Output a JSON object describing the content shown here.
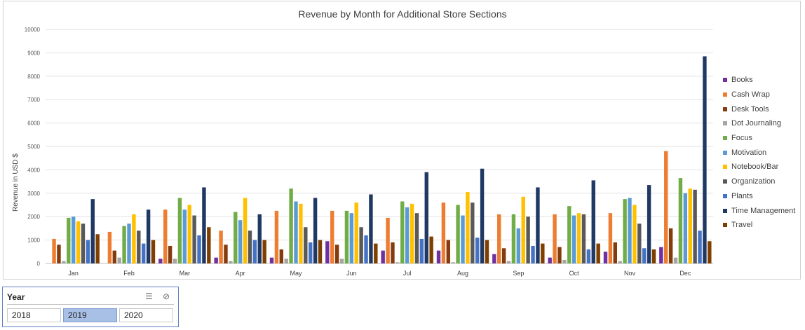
{
  "chart_data": {
    "type": "bar",
    "title": "Revenue by Month for Additional Store Sections",
    "ylabel": "Revenue in USD $",
    "xlabel": "",
    "ylim": [
      0,
      10000
    ],
    "ytick_values": [
      0,
      1000,
      2000,
      3000,
      4000,
      5000,
      6000,
      7000,
      8000,
      9000,
      10000
    ],
    "ytick_labels": [
      "0",
      "1000",
      "2000",
      "3000",
      "4000",
      "5000",
      "6000",
      "7000",
      "8000",
      "9000",
      "10000"
    ],
    "grid": true,
    "legend_position": "right",
    "categories": [
      "Jan",
      "Feb",
      "Mar",
      "Apr",
      "May",
      "Jun",
      "Jul",
      "Aug",
      "Sep",
      "Oct",
      "Nov",
      "Dec"
    ],
    "series": [
      {
        "name": "Books",
        "color": "#7030a0",
        "values": [
          0,
          0,
          200,
          250,
          250,
          950,
          550,
          550,
          400,
          250,
          500,
          700
        ]
      },
      {
        "name": "Cash Wrap",
        "color": "#ed7d31",
        "values": [
          1050,
          1350,
          2300,
          1400,
          2250,
          2250,
          1950,
          2600,
          2100,
          2100,
          2150,
          4800
        ]
      },
      {
        "name": "Desk Tools",
        "color": "#843c0c",
        "values": [
          800,
          550,
          750,
          800,
          600,
          800,
          900,
          1000,
          650,
          700,
          900,
          1500
        ]
      },
      {
        "name": "Dot Journaling",
        "color": "#a5a5a5",
        "values": [
          100,
          250,
          200,
          100,
          200,
          200,
          50,
          50,
          100,
          150,
          100,
          250
        ]
      },
      {
        "name": "Focus",
        "color": "#70ad47",
        "values": [
          1950,
          1600,
          2800,
          2200,
          3200,
          2250,
          2650,
          2500,
          2100,
          2450,
          2750,
          3650
        ]
      },
      {
        "name": "Motivation",
        "color": "#5b9bd5",
        "values": [
          2000,
          1700,
          2300,
          1850,
          2650,
          2150,
          2400,
          2050,
          1500,
          2050,
          2800,
          3000
        ]
      },
      {
        "name": "Notebook/Bar",
        "color": "#ffc000",
        "values": [
          1800,
          2100,
          2500,
          2800,
          2550,
          2600,
          2550,
          3050,
          2850,
          2150,
          2500,
          3200
        ]
      },
      {
        "name": "Organization",
        "color": "#595959",
        "values": [
          1700,
          1400,
          2050,
          1400,
          1550,
          1550,
          2150,
          2600,
          2000,
          2100,
          1700,
          3150
        ]
      },
      {
        "name": "Plants",
        "color": "#4472c4",
        "values": [
          1000,
          850,
          1200,
          1000,
          900,
          1200,
          1050,
          1100,
          750,
          600,
          650,
          1400
        ]
      },
      {
        "name": "Time Management",
        "color": "#203864",
        "values": [
          2750,
          2300,
          3250,
          2100,
          2800,
          2950,
          3900,
          4050,
          3250,
          3550,
          3350,
          8850
        ]
      },
      {
        "name": "Travel",
        "color": "#7f3f00",
        "values": [
          1250,
          1000,
          1550,
          1000,
          1000,
          850,
          1150,
          1000,
          850,
          850,
          600,
          950
        ]
      }
    ]
  },
  "slicer": {
    "title": "Year",
    "multiselect_icon": "multi-select-icon",
    "clear_filter_icon": "clear-filter-icon",
    "options": [
      {
        "label": "2018",
        "selected": false
      },
      {
        "label": "2019",
        "selected": true
      },
      {
        "label": "2020",
        "selected": false
      }
    ]
  }
}
